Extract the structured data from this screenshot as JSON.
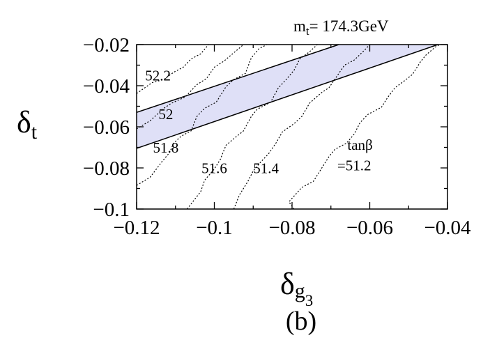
{
  "chart_data": {
    "type": "line",
    "annotation_top": "m_t = 174.3GeV",
    "annotation_top_parts": {
      "sym": "m",
      "sub": "t",
      "rest": "= 174.3GeV"
    },
    "xlabel_parts": {
      "sym": "δ",
      "sub": "g",
      "subsub": "3"
    },
    "ylabel_parts": {
      "sym": "δ",
      "sub": "t"
    },
    "panel_label": "(b)",
    "xlim": [
      -0.12,
      -0.04
    ],
    "ylim": [
      -0.1,
      -0.02
    ],
    "x_ticks": [
      -0.12,
      -0.1,
      -0.08,
      -0.06,
      -0.04
    ],
    "x_tick_labels": [
      "−0.12",
      "−0.1",
      "−0.08",
      "−0.06",
      "−0.04"
    ],
    "y_ticks": [
      -0.02,
      -0.04,
      -0.06,
      -0.08,
      -0.1
    ],
    "y_tick_labels": [
      "−0.02",
      "−0.04",
      "−0.06",
      "−0.08",
      "−0.1"
    ],
    "grid": false,
    "band": {
      "fill_color": "#dfe0f7",
      "upper": [
        [
          -0.12,
          -0.053
        ],
        [
          -0.068,
          -0.02
        ]
      ],
      "lower": [
        [
          -0.12,
          -0.0705
        ],
        [
          -0.0425,
          -0.02
        ]
      ]
    },
    "contours": [
      {
        "label": "52.2",
        "label_at": [
          -0.1145,
          -0.0375
        ],
        "points": [
          [
            -0.12,
            -0.0438
          ],
          [
            -0.116,
            -0.0385
          ],
          [
            -0.113,
            -0.037
          ],
          [
            -0.1105,
            -0.0335
          ],
          [
            -0.108,
            -0.031
          ],
          [
            -0.106,
            -0.027
          ],
          [
            -0.1035,
            -0.0245
          ],
          [
            -0.1015,
            -0.02
          ]
        ]
      },
      {
        "label": "52",
        "label_at": [
          -0.1125,
          -0.0562
        ],
        "points": [
          [
            -0.12,
            -0.061
          ],
          [
            -0.1165,
            -0.057
          ],
          [
            -0.113,
            -0.051
          ],
          [
            -0.111,
            -0.0485
          ],
          [
            -0.1075,
            -0.0455
          ],
          [
            -0.1045,
            -0.0395
          ],
          [
            -0.102,
            -0.0365
          ],
          [
            -0.1,
            -0.031
          ],
          [
            -0.0975,
            -0.028
          ],
          [
            -0.095,
            -0.024
          ],
          [
            -0.0925,
            -0.02
          ]
        ]
      },
      {
        "label": "51.8",
        "label_at": [
          -0.1125,
          -0.0725
        ],
        "points": [
          [
            -0.12,
            -0.0885
          ],
          [
            -0.1165,
            -0.0845
          ],
          [
            -0.1135,
            -0.077
          ],
          [
            -0.1115,
            -0.0725
          ],
          [
            -0.1105,
            -0.068
          ],
          [
            -0.1085,
            -0.0645
          ],
          [
            -0.106,
            -0.062
          ],
          [
            -0.1045,
            -0.055
          ],
          [
            -0.1025,
            -0.051
          ],
          [
            -0.0995,
            -0.048
          ],
          [
            -0.097,
            -0.0405
          ],
          [
            -0.095,
            -0.037
          ],
          [
            -0.092,
            -0.034
          ],
          [
            -0.0905,
            -0.0265
          ],
          [
            -0.0885,
            -0.022
          ],
          [
            -0.0865,
            -0.02
          ]
        ]
      },
      {
        "label": "51.6",
        "label_at": [
          -0.1,
          -0.0825
        ],
        "points": [
          [
            -0.107,
            -0.1
          ],
          [
            -0.1035,
            -0.0915
          ],
          [
            -0.1025,
            -0.086
          ],
          [
            -0.1,
            -0.0805
          ],
          [
            -0.0985,
            -0.076
          ],
          [
            -0.097,
            -0.069
          ],
          [
            -0.0945,
            -0.065
          ],
          [
            -0.0925,
            -0.062
          ],
          [
            -0.0905,
            -0.055
          ],
          [
            -0.089,
            -0.0515
          ],
          [
            -0.0855,
            -0.048
          ],
          [
            -0.0835,
            -0.041
          ],
          [
            -0.0815,
            -0.037
          ],
          [
            -0.0795,
            -0.0325
          ],
          [
            -0.078,
            -0.027
          ],
          [
            -0.0755,
            -0.0235
          ],
          [
            -0.0735,
            -0.02
          ]
        ]
      },
      {
        "label": "51.4",
        "label_at": [
          -0.0867,
          -0.0825
        ],
        "points": [
          [
            -0.095,
            -0.1
          ],
          [
            -0.0935,
            -0.093
          ],
          [
            -0.0915,
            -0.087
          ],
          [
            -0.09,
            -0.0815
          ],
          [
            -0.088,
            -0.077
          ],
          [
            -0.086,
            -0.073
          ],
          [
            -0.084,
            -0.0675
          ],
          [
            -0.0825,
            -0.0625
          ],
          [
            -0.0795,
            -0.0585
          ],
          [
            -0.0775,
            -0.055
          ],
          [
            -0.0755,
            -0.0485
          ],
          [
            -0.0725,
            -0.0435
          ],
          [
            -0.0705,
            -0.041
          ],
          [
            -0.0685,
            -0.0355
          ],
          [
            -0.0665,
            -0.03
          ],
          [
            -0.064,
            -0.0275
          ],
          [
            -0.0615,
            -0.023
          ],
          [
            -0.06,
            -0.02
          ]
        ]
      },
      {
        "label": "=51.2",
        "label_at": [
          -0.064,
          -0.0812
        ],
        "label_line2": "tanβ",
        "label2_at": [
          -0.0625,
          -0.0712
        ],
        "points": [
          [
            -0.0795,
            -0.1
          ],
          [
            -0.0808,
            -0.0965
          ],
          [
            -0.0775,
            -0.0895
          ],
          [
            -0.0745,
            -0.0865
          ],
          [
            -0.0725,
            -0.0805
          ],
          [
            -0.0705,
            -0.0745
          ],
          [
            -0.069,
            -0.071
          ],
          [
            -0.066,
            -0.068
          ],
          [
            -0.064,
            -0.0635
          ],
          [
            -0.0625,
            -0.058
          ],
          [
            -0.0605,
            -0.054
          ],
          [
            -0.057,
            -0.0505
          ],
          [
            -0.0555,
            -0.046
          ],
          [
            -0.0535,
            -0.041
          ],
          [
            -0.051,
            -0.0375
          ],
          [
            -0.049,
            -0.0345
          ],
          [
            -0.047,
            -0.0285
          ],
          [
            -0.0455,
            -0.025
          ],
          [
            -0.043,
            -0.021
          ],
          [
            -0.042,
            -0.02
          ]
        ]
      }
    ]
  }
}
